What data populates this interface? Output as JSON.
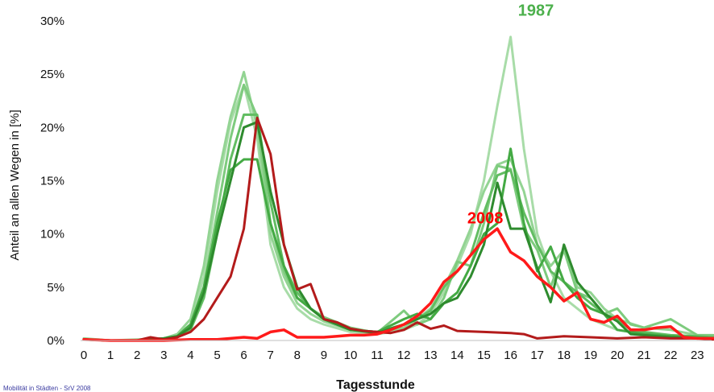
{
  "chart_data": {
    "type": "line",
    "xlabel": "Tagesstunde",
    "ylabel": "Anteil an allen Wegen in [%]",
    "x_ticks": [
      "0",
      "1",
      "2",
      "3",
      "4",
      "5",
      "6",
      "7",
      "8",
      "9",
      "10",
      "11",
      "12",
      "13",
      "14",
      "15",
      "16",
      "17",
      "18",
      "19",
      "20",
      "21",
      "22",
      "23"
    ],
    "y_ticks": [
      "0%",
      "5%",
      "10%",
      "15%",
      "20%",
      "25%",
      "30%"
    ],
    "ylim": [
      0,
      30
    ],
    "xlim": [
      0,
      23.6
    ],
    "grid": false,
    "annotations": [
      {
        "text": "1987",
        "color": "#4cb04c",
        "x": 16.95,
        "y": 30.5
      },
      {
        "text": "2008",
        "color": "#ff0000",
        "x": 15.05,
        "y": 11.0
      }
    ],
    "source_note": "Mobilität in Städten - SrV 2008",
    "series": [
      {
        "color": "#a8dca8",
        "width": 3,
        "x": [
          0,
          1,
          2,
          3,
          3.5,
          4,
          4.5,
          5,
          5.5,
          6,
          6.5,
          7,
          7.5,
          8,
          8.5,
          9,
          10,
          11,
          12,
          12.5,
          13,
          13.5,
          14,
          14.5,
          15,
          15.5,
          16,
          16.5,
          17,
          17.5,
          18,
          18.5,
          19,
          20,
          21,
          22,
          23,
          23.6
        ],
        "y": [
          0.1,
          0,
          0,
          0.2,
          0.5,
          1.5,
          6,
          14,
          20.5,
          24,
          19,
          9,
          5,
          3,
          2,
          1.5,
          0.8,
          0.6,
          1,
          1.5,
          2.5,
          4.5,
          7,
          10,
          15,
          22,
          28.5,
          18,
          10,
          6.5,
          4,
          3,
          2,
          1,
          0.6,
          0.4,
          0.3,
          0.2
        ]
      },
      {
        "color": "#93d493",
        "width": 3,
        "x": [
          0,
          1,
          2,
          3,
          3.5,
          4,
          4.5,
          5,
          5.5,
          6,
          6.5,
          7,
          7.5,
          8,
          8.5,
          9,
          10,
          11,
          12,
          12.5,
          13,
          13.5,
          14,
          14.5,
          15,
          15.5,
          16,
          16.5,
          17,
          17.5,
          18,
          18.5,
          19,
          19.5,
          20,
          21,
          22,
          23,
          23.6
        ],
        "y": [
          0.2,
          0,
          0.1,
          0.2,
          0.6,
          2,
          7,
          15,
          21,
          25.2,
          20,
          10,
          6,
          3.5,
          2.5,
          1.8,
          1,
          0.8,
          1.2,
          2,
          3,
          5,
          7.5,
          10.5,
          14,
          16.5,
          17,
          14,
          9,
          7,
          8.5,
          5,
          4.5,
          3,
          2,
          1.2,
          1,
          0.5,
          0.4
        ]
      },
      {
        "color": "#7ecb7e",
        "width": 3,
        "x": [
          0,
          1,
          2,
          3,
          3.5,
          4,
          4.5,
          5,
          5.5,
          6,
          6.5,
          7,
          7.5,
          8,
          8.5,
          9,
          10,
          11,
          12,
          12.5,
          13,
          13.5,
          14,
          14.5,
          15,
          15.5,
          16,
          16.5,
          17,
          17.5,
          18,
          18.5,
          19,
          19.5,
          20,
          20.5,
          21,
          22,
          23,
          23.6
        ],
        "y": [
          0.1,
          0,
          0,
          0.2,
          0.4,
          1.5,
          5,
          12,
          19,
          24,
          21,
          11,
          6.5,
          4,
          3,
          2.2,
          1.2,
          0.7,
          2.8,
          1.5,
          2,
          4,
          7.4,
          7,
          11,
          16.4,
          16.1,
          10.5,
          8.5,
          5,
          8.5,
          4.5,
          4,
          2.5,
          3,
          1.5,
          1.2,
          2,
          0.5,
          0.5
        ]
      },
      {
        "color": "#62bd62",
        "width": 3,
        "x": [
          0,
          1,
          2,
          3,
          3.5,
          4,
          4.5,
          5,
          5.5,
          6,
          6.5,
          7,
          7.5,
          8,
          8.5,
          9,
          10,
          11,
          12,
          12.5,
          13,
          13.5,
          14,
          14.5,
          15,
          15.5,
          16,
          16.5,
          17,
          17.5,
          18,
          18.5,
          19,
          19.5,
          20,
          20.5,
          21,
          22,
          23,
          23.6
        ],
        "y": [
          0.1,
          0,
          0,
          0.1,
          0.3,
          1,
          4,
          10,
          17,
          21.2,
          21.2,
          13,
          7,
          4.5,
          3,
          2,
          1,
          0.8,
          1.5,
          2,
          2.8,
          5,
          6.5,
          8,
          12,
          15.5,
          16,
          12,
          9,
          6.5,
          5.5,
          4.5,
          3.5,
          2.5,
          2,
          1,
          0.8,
          0.5,
          0.4,
          0.3
        ]
      },
      {
        "color": "#44aa44",
        "width": 3,
        "x": [
          0,
          1,
          2,
          3,
          3.5,
          4,
          4.5,
          5,
          5.5,
          6,
          6.5,
          7,
          7.5,
          8,
          8.5,
          9,
          10,
          11,
          12,
          12.5,
          13,
          13.5,
          14,
          14.5,
          15,
          15.5,
          16,
          16.5,
          17,
          17.5,
          18,
          18.5,
          19,
          19.5,
          20,
          20.5,
          21,
          22,
          23,
          23.6
        ],
        "y": [
          0.1,
          0,
          0,
          0.2,
          0.4,
          1.5,
          5,
          11,
          16,
          17,
          17,
          11,
          7,
          4,
          3,
          2,
          1,
          0.8,
          2,
          2.5,
          2,
          3.5,
          4.5,
          7,
          10,
          11,
          18,
          11,
          6.5,
          8.8,
          5.5,
          4,
          3,
          2.5,
          1,
          0.8,
          0.6,
          0.4,
          0.3,
          0.2
        ]
      },
      {
        "color": "#2e8b2e",
        "width": 3,
        "x": [
          0,
          1,
          2,
          3,
          3.5,
          4,
          4.5,
          5,
          5.5,
          6,
          6.5,
          7,
          7.5,
          8,
          8.5,
          9,
          10,
          11,
          12,
          12.5,
          13,
          13.5,
          14,
          14.5,
          15,
          15.5,
          16,
          16.5,
          17,
          17.5,
          18,
          18.5,
          19,
          19.5,
          20,
          20.5,
          21,
          22,
          23,
          23.6
        ],
        "y": [
          0.1,
          0,
          0,
          0.2,
          0.4,
          1.2,
          4.5,
          10,
          15,
          20,
          20.5,
          14,
          9,
          5,
          3,
          2,
          1,
          0.7,
          1.5,
          2,
          2.5,
          3.5,
          4,
          6,
          9,
          14.8,
          10.5,
          10.5,
          6.8,
          3.6,
          9,
          5.5,
          4,
          2.5,
          1.8,
          0.6,
          0.5,
          0.3,
          0.2,
          0.2
        ]
      },
      {
        "color": "#b31b1b",
        "width": 3,
        "x": [
          0,
          1,
          2,
          2.5,
          3,
          3.5,
          4,
          4.5,
          5,
          5.5,
          6,
          6.5,
          7,
          7.5,
          8,
          8.5,
          9,
          9.5,
          10,
          10.5,
          11,
          11.5,
          12,
          12.5,
          13,
          13.5,
          14,
          15,
          16,
          16.5,
          17,
          18,
          19,
          20,
          21,
          22,
          23,
          23.6
        ],
        "y": [
          0.1,
          0,
          0,
          0.3,
          0.1,
          0.3,
          0.8,
          2,
          4,
          6,
          10.5,
          20.9,
          17.5,
          9,
          4.8,
          5.3,
          2,
          1.7,
          1.1,
          0.9,
          0.8,
          0.7,
          1,
          1.7,
          1.1,
          1.4,
          0.9,
          0.8,
          0.7,
          0.6,
          0.2,
          0.4,
          0.3,
          0.2,
          0.3,
          0.2,
          0.2,
          0.1
        ]
      },
      {
        "color": "#ff1a1a",
        "width": 3.5,
        "x": [
          0,
          1,
          2,
          3,
          4,
          4.5,
          5,
          5.5,
          6,
          6.5,
          7,
          7.5,
          8,
          8.5,
          9,
          9.5,
          10,
          10.5,
          11,
          11.5,
          12,
          12.5,
          13,
          13.5,
          14,
          14.5,
          15,
          15.5,
          16,
          16.5,
          17,
          17.5,
          18,
          18.5,
          19,
          19.5,
          20,
          20.5,
          21,
          21.5,
          22,
          22.5,
          23,
          23.6
        ],
        "y": [
          0.1,
          0,
          0,
          0,
          0.1,
          0.1,
          0.1,
          0.2,
          0.3,
          0.2,
          0.8,
          1,
          0.3,
          0.3,
          0.3,
          0.4,
          0.5,
          0.5,
          0.6,
          1,
          1.5,
          2.3,
          3.5,
          5.5,
          6.5,
          8,
          9.5,
          10.5,
          8.3,
          7.5,
          6,
          5,
          3.7,
          4.5,
          2,
          1.7,
          2.3,
          1,
          1,
          1.2,
          1.3,
          0.3,
          0.2,
          0.2
        ]
      }
    ]
  }
}
